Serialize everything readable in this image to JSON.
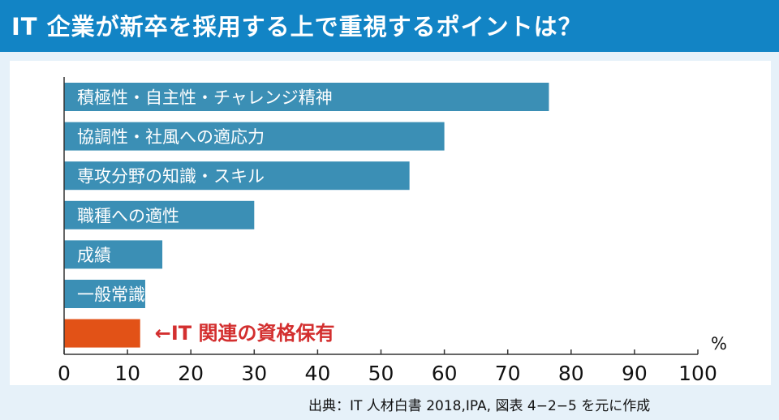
{
  "header": {
    "title": "IT 企業が新卒を採用する上で重視するポイントは？"
  },
  "source": "出典：IT 人材白書 2018,IPA, 図表 4−2−5 を元に作成",
  "colors": {
    "header_bg": "#1284c5",
    "bar": "#3b8fb5",
    "highlight_bar": "#e25217",
    "highlight_text": "#d32f2f"
  },
  "chart_data": {
    "type": "bar",
    "orientation": "horizontal",
    "title": "IT 企業が新卒を採用する上で重視するポイントは？",
    "unit_label": "%",
    "xlim": [
      0,
      100
    ],
    "ticks": [
      "0",
      "10",
      "20",
      "30",
      "40",
      "50",
      "60",
      "70",
      "80",
      "90",
      "100"
    ],
    "categories": [
      "積極性・自主性・チャレンジ精神",
      "協調性・社風への適応力",
      "専攻分野の知識・スキル",
      "職種への適性",
      "成績",
      "一般常識",
      "←IT 関連の資格保有"
    ],
    "values": [
      76.5,
      60,
      54.5,
      30,
      15.5,
      12.8,
      12
    ],
    "highlight_index": 6
  }
}
